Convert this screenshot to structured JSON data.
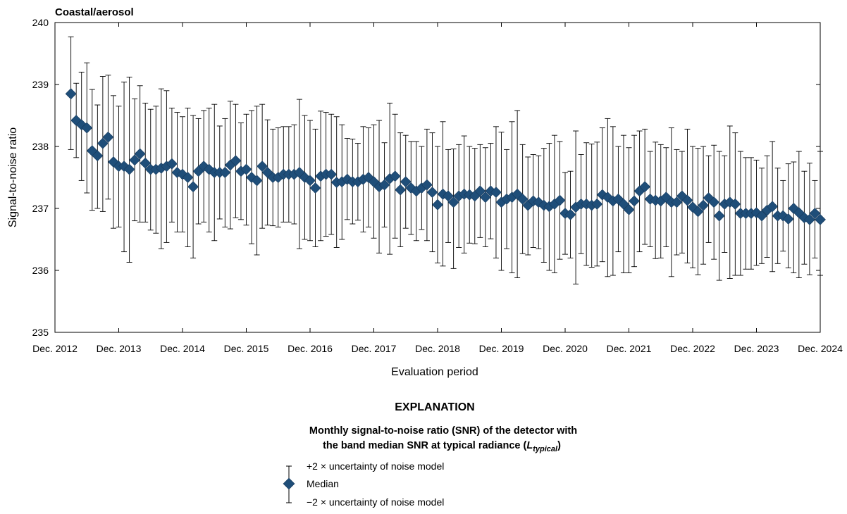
{
  "chart_data": {
    "type": "scatter",
    "title": "Coastal/aerosol",
    "xlabel": "Evaluation period",
    "ylabel": "Signal-to-noise ratio",
    "ylim": [
      235,
      240
    ],
    "yticks": [
      235,
      236,
      237,
      238,
      239,
      240
    ],
    "xlim": [
      "2012-12",
      "2024-12"
    ],
    "xticks": [
      "Dec. 2012",
      "Dec. 2013",
      "Dec. 2014",
      "Dec. 2015",
      "Dec. 2016",
      "Dec. 2017",
      "Dec. 2018",
      "Dec. 2019",
      "Dec. 2020",
      "Dec. 2021",
      "Dec. 2022",
      "Dec. 2023",
      "Dec. 2024"
    ],
    "grid": false,
    "x_start": "2013-03",
    "x_step": "1 month",
    "series": [
      {
        "marker": "diamond",
        "color": "#1f4e79",
        "median": [
          238.85,
          238.42,
          238.35,
          238.3,
          237.93,
          237.85,
          238.05,
          238.15,
          237.75,
          237.68,
          237.68,
          237.63,
          237.78,
          237.88,
          237.73,
          237.63,
          237.63,
          237.65,
          237.68,
          237.72,
          237.58,
          237.55,
          237.5,
          237.35,
          237.6,
          237.68,
          237.63,
          237.58,
          237.58,
          237.58,
          237.7,
          237.77,
          237.6,
          237.63,
          237.5,
          237.45,
          237.68,
          237.58,
          237.5,
          237.5,
          237.55,
          237.55,
          237.55,
          237.58,
          237.5,
          237.45,
          237.33,
          237.52,
          237.55,
          237.55,
          237.42,
          237.43,
          237.47,
          237.43,
          237.43,
          237.47,
          237.5,
          237.43,
          237.35,
          237.38,
          237.48,
          237.52,
          237.3,
          237.43,
          237.33,
          237.28,
          237.33,
          237.38,
          237.26,
          237.06,
          237.23,
          237.2,
          237.1,
          237.2,
          237.23,
          237.22,
          237.2,
          237.28,
          237.18,
          237.28,
          237.26,
          237.1,
          237.15,
          237.18,
          237.23,
          237.15,
          237.05,
          237.12,
          237.1,
          237.05,
          237.03,
          237.07,
          237.13,
          236.92,
          236.9,
          237.02,
          237.07,
          237.07,
          237.05,
          237.07,
          237.22,
          237.18,
          237.12,
          237.15,
          237.07,
          236.98,
          237.12,
          237.28,
          237.35,
          237.15,
          237.13,
          237.12,
          237.18,
          237.1,
          237.1,
          237.2,
          237.13,
          237.02,
          236.95,
          237.05,
          237.17,
          237.1,
          236.88,
          237.07,
          237.1,
          237.07,
          236.92,
          236.92,
          236.92,
          236.93,
          236.88,
          236.97,
          237.03,
          236.88,
          236.88,
          236.83,
          237.0,
          236.93,
          236.85,
          236.82,
          236.92,
          236.82
        ],
        "plus_2x_uncertainty": [
          239.77,
          239.02,
          239.2,
          239.35,
          238.92,
          238.67,
          239.13,
          239.15,
          238.82,
          238.65,
          239.04,
          239.12,
          238.77,
          238.98,
          238.7,
          238.6,
          238.65,
          238.93,
          238.9,
          238.62,
          238.55,
          238.48,
          238.62,
          238.5,
          238.45,
          238.58,
          238.62,
          238.68,
          238.33,
          238.45,
          238.73,
          238.68,
          238.38,
          238.52,
          238.58,
          238.65,
          238.68,
          238.43,
          238.28,
          238.3,
          238.32,
          238.32,
          238.35,
          238.76,
          238.5,
          238.42,
          238.28,
          238.57,
          238.55,
          238.52,
          238.48,
          238.35,
          238.13,
          238.12,
          238.05,
          238.32,
          238.3,
          238.35,
          238.42,
          238.06,
          238.7,
          238.52,
          238.22,
          238.18,
          238.08,
          238.08,
          238.0,
          238.28,
          238.22,
          238.0,
          238.4,
          237.95,
          237.96,
          238.03,
          238.17,
          238.0,
          237.97,
          238.03,
          237.98,
          238.05,
          238.32,
          238.23,
          237.95,
          238.4,
          238.58,
          238.03,
          237.83,
          237.87,
          237.85,
          237.97,
          238.05,
          238.18,
          238.08,
          237.58,
          237.6,
          238.25,
          237.87,
          238.06,
          238.04,
          238.07,
          238.3,
          238.45,
          238.32,
          238.0,
          238.18,
          237.98,
          238.18,
          238.25,
          238.28,
          237.92,
          238.07,
          238.03,
          237.98,
          238.3,
          237.95,
          237.92,
          238.28,
          238.0,
          237.97,
          238.0,
          237.85,
          238.02,
          237.92,
          237.85,
          238.33,
          238.22,
          237.92,
          237.82,
          237.82,
          237.78,
          237.65,
          237.85,
          238.08,
          237.65,
          237.45,
          237.72,
          237.75,
          237.92,
          237.6,
          237.73,
          237.45,
          237.92
        ],
        "minus_2x_uncertainty": [
          237.95,
          237.82,
          237.45,
          237.25,
          236.97,
          237.0,
          236.95,
          237.15,
          236.68,
          236.7,
          236.3,
          236.13,
          236.8,
          236.78,
          236.78,
          236.65,
          236.6,
          236.35,
          236.45,
          236.78,
          236.62,
          236.62,
          236.38,
          236.2,
          236.75,
          236.78,
          236.62,
          236.48,
          236.83,
          236.7,
          236.67,
          236.85,
          236.82,
          236.73,
          236.43,
          236.25,
          236.68,
          236.73,
          236.72,
          236.7,
          236.78,
          236.78,
          236.75,
          236.35,
          236.5,
          236.48,
          236.38,
          236.48,
          236.55,
          236.58,
          236.37,
          236.5,
          236.82,
          236.75,
          236.81,
          236.62,
          236.7,
          236.52,
          236.28,
          236.7,
          236.26,
          236.52,
          236.38,
          236.68,
          236.58,
          236.48,
          236.66,
          236.48,
          236.3,
          236.12,
          236.07,
          236.45,
          236.03,
          236.37,
          236.28,
          236.44,
          236.43,
          236.53,
          236.38,
          236.51,
          236.2,
          236.0,
          236.35,
          235.96,
          235.88,
          236.27,
          236.25,
          236.37,
          236.35,
          236.13,
          236.0,
          235.96,
          236.18,
          236.26,
          236.2,
          235.78,
          236.27,
          236.08,
          236.05,
          236.07,
          236.14,
          235.9,
          235.92,
          236.3,
          235.96,
          235.96,
          236.06,
          236.3,
          236.42,
          236.38,
          236.19,
          236.2,
          236.38,
          235.9,
          236.25,
          236.28,
          236.12,
          236.04,
          235.93,
          236.1,
          236.45,
          236.18,
          235.84,
          236.29,
          235.87,
          235.92,
          235.92,
          236.02,
          236.02,
          236.08,
          236.11,
          236.21,
          235.98,
          236.11,
          236.31,
          236.04,
          235.96,
          235.88,
          236.1,
          235.93,
          236.2,
          235.92
        ],
        "legend": "Median"
      }
    ]
  },
  "legend": {
    "heading": "EXPLANATION",
    "desc_line1": "Monthly signal-to-noise ratio (SNR) of the detector with",
    "desc_line2_pre": "the band median SNR at typical radiance (",
    "desc_symbol": "L",
    "desc_subscript": "typical",
    "desc_line2_post": ")",
    "plus_label": "+2 × uncertainty of noise model",
    "median_label": "Median",
    "minus_label": "−2 × uncertainty of noise model"
  }
}
